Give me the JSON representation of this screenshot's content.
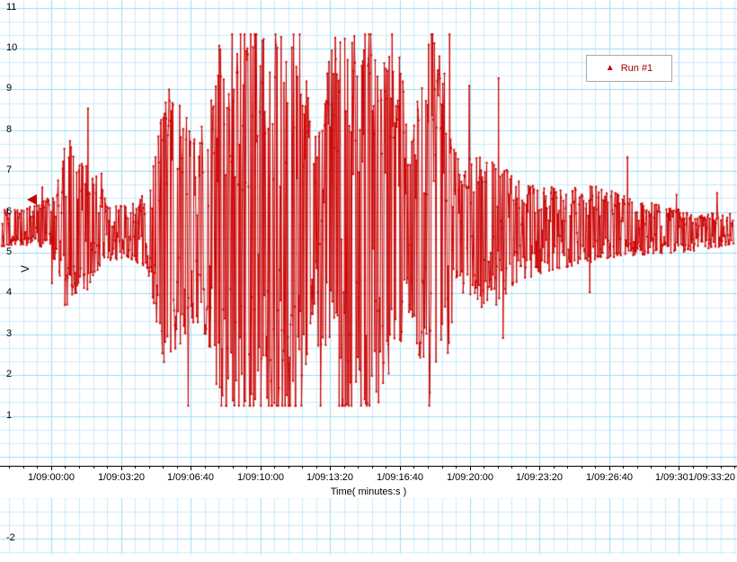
{
  "chart": {
    "y_axis": {
      "title": "V",
      "tick_labels": [
        "11",
        "10",
        "9",
        "8",
        "7",
        "6",
        "5",
        "4",
        "3",
        "2",
        "1",
        "-2"
      ]
    },
    "x_axis": {
      "title": "Time( minutes:s )",
      "tick_labels": [
        "1/09:00:00",
        "1/09:03:20",
        "1/09:06:40",
        "1/09:10:00",
        "1/09:13:20",
        "1/09:16:40",
        "1/09:20:00",
        "1/09:23:20",
        "1/09:26:40",
        "1/09:30:00",
        "1/09:33:20"
      ]
    },
    "legend": {
      "label": "Run #1",
      "marker": "triangle"
    },
    "cursor_marker": {
      "y_value": 6.3
    },
    "colors": {
      "series": "#cc0000",
      "legend_text": "#a00000",
      "grid_minor": "#c9edf9",
      "grid_major": "#9adef4",
      "axis_line": "#000000",
      "text": "#000000",
      "background": "#ffffff"
    }
  },
  "chart_data": {
    "type": "line",
    "title": "",
    "series_name": "Run #1",
    "xlabel": "Time( minutes:s )",
    "ylabel": "V",
    "x_tick_labels": [
      "1/09:00:00",
      "1/09:03:20",
      "1/09:06:40",
      "1/09:10:00",
      "1/09:13:20",
      "1/09:16:40",
      "1/09:20:00",
      "1/09:23:20",
      "1/09:26:40",
      "1/09:30:00",
      "1/09:33:20"
    ],
    "x_tick_interval_seconds": 200,
    "ylim": [
      -2,
      11
    ],
    "y_visible_tick_values": [
      11,
      10,
      9,
      8,
      7,
      6,
      5,
      4,
      3,
      2,
      1,
      -2
    ],
    "grid": "on",
    "legend_position": "top-right",
    "baseline": 5.6,
    "clip_levels": [
      1.25,
      10.35
    ],
    "sample_count": 1300,
    "points_note": "Dense seismogram-style noise burst: quiet band around 5.6 V, main clipped bursts (1.25-10.35 V) between ~1/09:08 and ~1/09:18, decaying tail afterwards. Values reconstructed from amplitude envelope below (fraction of x-span, peak amplitude in volts around baseline).",
    "amplitude_envelope": [
      [
        0.0,
        0.45
      ],
      [
        0.05,
        0.5
      ],
      [
        0.075,
        0.9
      ],
      [
        0.09,
        2.4
      ],
      [
        0.105,
        1.5
      ],
      [
        0.12,
        1.7
      ],
      [
        0.14,
        0.9
      ],
      [
        0.17,
        0.6
      ],
      [
        0.2,
        1.0
      ],
      [
        0.225,
        3.7
      ],
      [
        0.245,
        3.0
      ],
      [
        0.265,
        2.2
      ],
      [
        0.285,
        3.2
      ],
      [
        0.3,
        4.9
      ],
      [
        0.35,
        5.0
      ],
      [
        0.41,
        5.0
      ],
      [
        0.425,
        2.2
      ],
      [
        0.44,
        3.5
      ],
      [
        0.455,
        4.9
      ],
      [
        0.52,
        5.0
      ],
      [
        0.545,
        4.2
      ],
      [
        0.555,
        2.4
      ],
      [
        0.57,
        3.2
      ],
      [
        0.585,
        4.9
      ],
      [
        0.6,
        4.6
      ],
      [
        0.615,
        2.4
      ],
      [
        0.63,
        1.7
      ],
      [
        0.655,
        1.9
      ],
      [
        0.68,
        1.8
      ],
      [
        0.7,
        1.3
      ],
      [
        0.73,
        1.1
      ],
      [
        0.76,
        1.0
      ],
      [
        0.8,
        1.0
      ],
      [
        0.84,
        0.8
      ],
      [
        0.88,
        0.65
      ],
      [
        0.92,
        0.55
      ],
      [
        0.96,
        0.45
      ],
      [
        1.0,
        0.4
      ]
    ]
  }
}
